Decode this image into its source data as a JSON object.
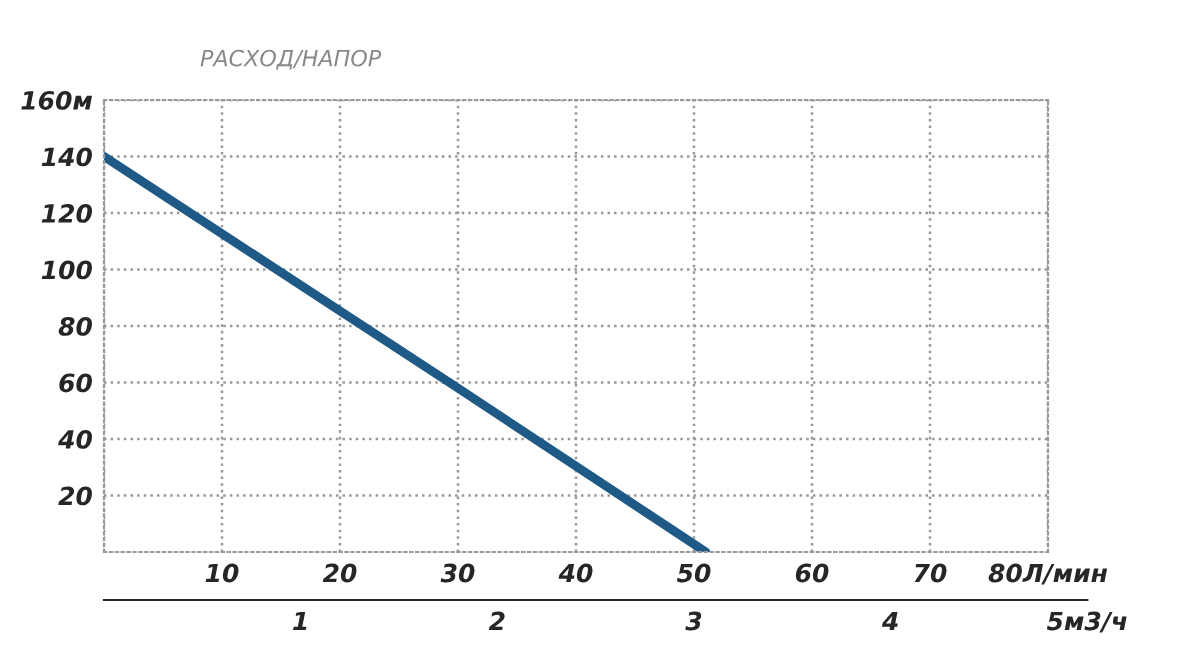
{
  "chart_data": {
    "type": "line",
    "ylabel": "РАСХОД/НАПОР",
    "series": [
      {
        "color": "#1f5a87",
        "x": [
          0,
          30,
          51
        ],
        "values": [
          140,
          58,
          0
        ]
      }
    ],
    "xlim": [
      0,
      80
    ],
    "xticks": [
      {
        "value": 0,
        "label": null
      },
      10,
      20,
      30,
      40,
      50,
      60,
      70,
      {
        "value": 80,
        "label": "80Л/мин"
      }
    ],
    "ylim": [
      0,
      160
    ],
    "yticks": [
      20,
      40,
      60,
      80,
      100,
      120,
      140,
      {
        "value": 160,
        "label": "160м"
      }
    ],
    "x2lim": [
      0,
      5
    ],
    "x2ticks": [
      1,
      2,
      3,
      4,
      {
        "value": 5,
        "label": "5м3/ч"
      }
    ],
    "grid": true,
    "marker": "none",
    "line_style": "solid"
  }
}
